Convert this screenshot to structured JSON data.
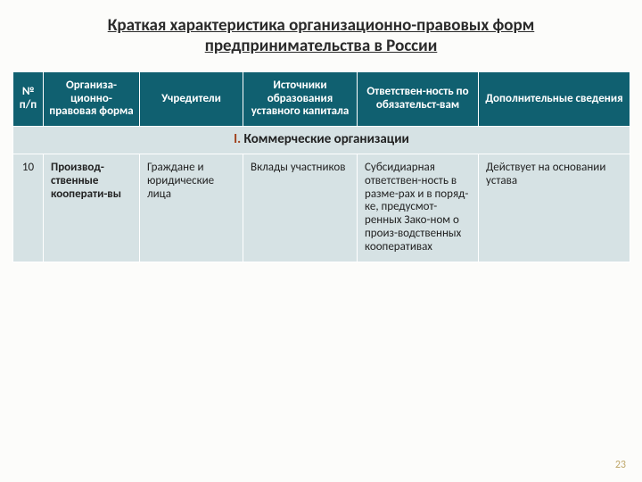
{
  "title": "Краткая характеристика организационно-правовых форм предпринимательства в России",
  "columns": {
    "c0": "№ п/п",
    "c1": "Организа-ционно-правовая форма",
    "c2": "Учредители",
    "c3": "Источники образования уставного капитала",
    "c4": "Ответствен-ность по обязательст-вам",
    "c5": "Дополнительные сведения"
  },
  "section": {
    "num": "I.",
    "label": "Коммерческие организации"
  },
  "row": {
    "n": "10",
    "form": "Производ-ственные кооперати-вы",
    "founders": "Граждане и юридические лица",
    "sources": "Вклады участников",
    "liability": "Субсидиарная ответствен-ность в разме-рах и в поряд-ке, предусмот-ренных Зако-ном о произ-водственных кооперативах",
    "extra": "Действует на основании устава"
  },
  "pageNumber": "23",
  "colors": {
    "header_bg": "#106070",
    "body_bg": "#d6e2e4",
    "section_num": "#a0401a",
    "page_num": "#bfa76a"
  }
}
